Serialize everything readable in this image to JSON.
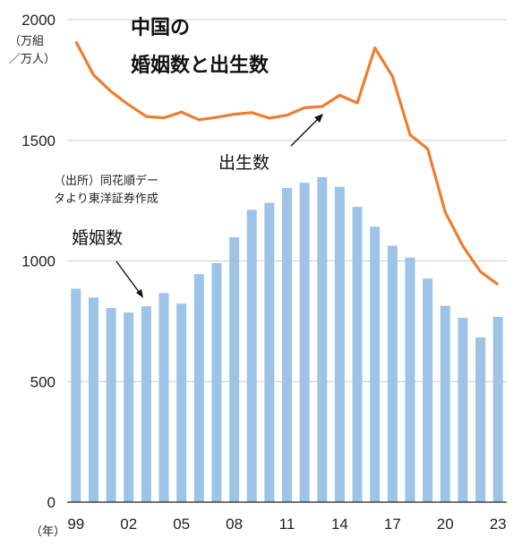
{
  "chart_data": {
    "type": "bar+line",
    "title_line1": "中国の",
    "title_line2": "婚姻数と出生数",
    "unit_line1": "（万組",
    "unit_line2": "／万人）",
    "source_line1": "（出所）同花順デー",
    "source_line2": "タより東洋証券作成",
    "year_unit": "（年）",
    "ylim": [
      0,
      2000
    ],
    "yticks": [
      "0",
      "500",
      "1000",
      "1500",
      "2000"
    ],
    "ytick_values": [
      0,
      500,
      1000,
      1500,
      2000
    ],
    "years": [
      1999,
      2000,
      2001,
      2002,
      2003,
      2004,
      2005,
      2006,
      2007,
      2008,
      2009,
      2010,
      2011,
      2012,
      2013,
      2014,
      2015,
      2016,
      2017,
      2018,
      2019,
      2020,
      2021,
      2022,
      2023
    ],
    "xtick_labels": [
      "99",
      "02",
      "05",
      "08",
      "11",
      "14",
      "17",
      "20",
      "23"
    ],
    "xtick_years": [
      1999,
      2002,
      2005,
      2008,
      2011,
      2014,
      2017,
      2020,
      2023
    ],
    "series": [
      {
        "name": "婚姻数",
        "type": "bar",
        "color": "#9dc3e6",
        "values": [
          885,
          848,
          805,
          786,
          812,
          867,
          823,
          945,
          991,
          1098,
          1212,
          1241,
          1302,
          1324,
          1347,
          1307,
          1224,
          1142,
          1063,
          1014,
          927,
          814,
          764,
          683,
          768
        ]
      },
      {
        "name": "出生数",
        "type": "line",
        "color": "#ed7d31",
        "values": [
          1909,
          1771,
          1702,
          1647,
          1599,
          1593,
          1617,
          1585,
          1595,
          1608,
          1615,
          1592,
          1604,
          1635,
          1640,
          1687,
          1655,
          1883,
          1765,
          1523,
          1465,
          1202,
          1062,
          956,
          902
        ]
      }
    ]
  },
  "colors": {
    "bar": "#9dc3e6",
    "line": "#ed7d31",
    "axis": "#222222",
    "grid": "#cccccc"
  }
}
